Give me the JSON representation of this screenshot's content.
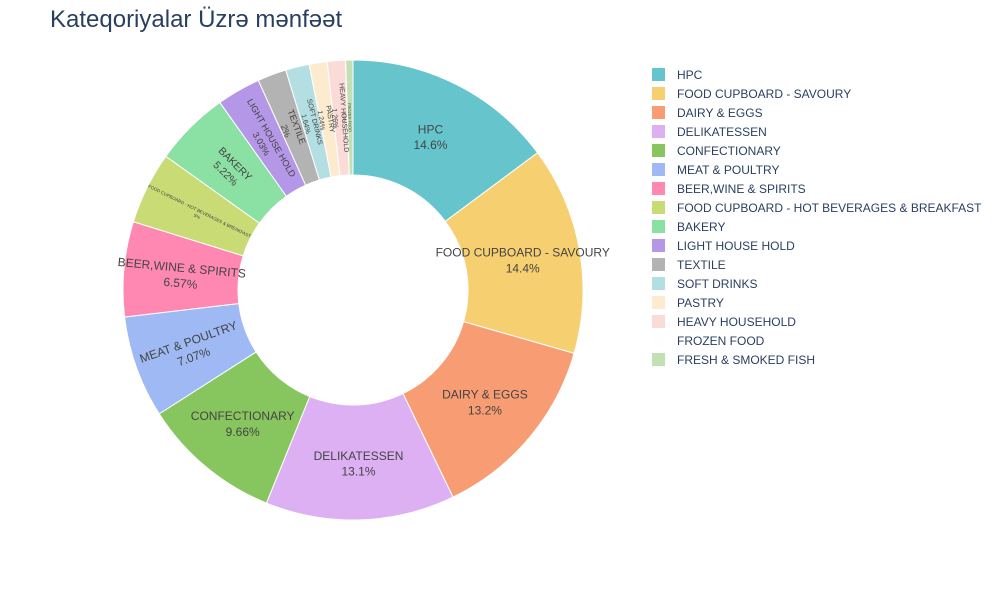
{
  "chart_data": {
    "type": "pie",
    "title": "Kateqoriyalar Üzrə mənfəət",
    "hole": true,
    "legend_position": "right",
    "slices": [
      {
        "label": "HPC",
        "value": 14.6,
        "pct_text": "14.6%",
        "color": "#66C5CC"
      },
      {
        "label": "FOOD CUPBOARD - SAVOURY",
        "value": 14.4,
        "pct_text": "14.4%",
        "color": "#F6CF71"
      },
      {
        "label": "DAIRY & EGGS",
        "value": 13.2,
        "pct_text": "13.2%",
        "color": "#F89C74"
      },
      {
        "label": "DELIKATESSEN",
        "value": 13.1,
        "pct_text": "13.1%",
        "color": "#DCB0F2"
      },
      {
        "label": "CONFECTIONARY",
        "value": 9.66,
        "pct_text": "9.66%",
        "color": "#87C55F"
      },
      {
        "label": "MEAT & POULTRY",
        "value": 7.07,
        "pct_text": "7.07%",
        "color": "#9EB9F3"
      },
      {
        "label": "BEER,WINE & SPIRITS",
        "value": 6.57,
        "pct_text": "6.57%",
        "color": "#FE88B1"
      },
      {
        "label": "FOOD CUPBOARD - HOT BEVERAGES & BREAKFAST",
        "value": 5.0,
        "pct_text": "5%",
        "color": "#C9DB74"
      },
      {
        "label": "BAKERY",
        "value": 5.22,
        "pct_text": "5.22%",
        "color": "#8BE0A4"
      },
      {
        "label": "LIGHT HOUSE HOLD",
        "value": 3.03,
        "pct_text": "3.03%",
        "color": "#B497E7"
      },
      {
        "label": "TEXTILE",
        "value": 2.0,
        "pct_text": "2%",
        "color": "#B3B3B3"
      },
      {
        "label": "SOFT DRINKS",
        "value": 1.64,
        "pct_text": "1.64%",
        "color": "#B3DEE2"
      },
      {
        "label": "PASTRY",
        "value": 1.24,
        "pct_text": "1.24%",
        "color": "#FDEBD0"
      },
      {
        "label": "HEAVY HOUSEHOLD",
        "value": 1.26,
        "pct_text": "1.26%",
        "color": "#FADBD8"
      },
      {
        "label": "FROZEN FOOD",
        "value": 0.01,
        "pct_text": "0.0%",
        "color": "#FDFEFE"
      },
      {
        "label": "FRESH & SMOKED FISH",
        "value": 0.5,
        "pct_text": "",
        "color": "#C2E0B4"
      }
    ]
  }
}
